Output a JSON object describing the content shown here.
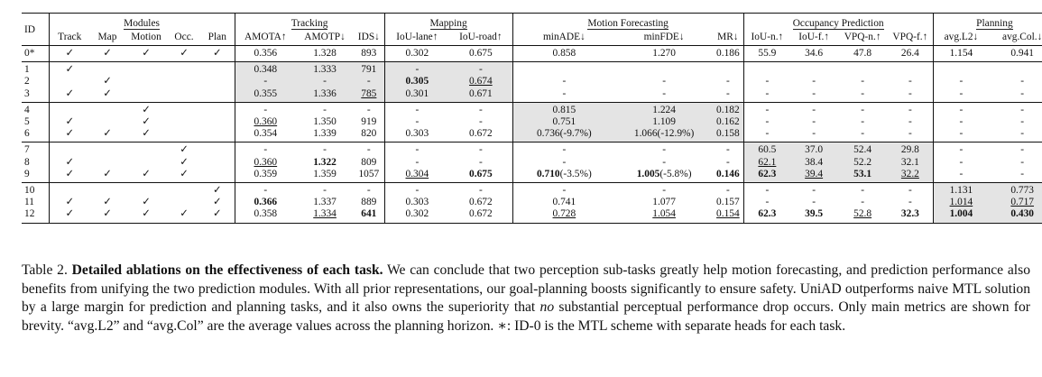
{
  "table": {
    "group_headers": {
      "id": "ID",
      "modules": "Modules",
      "tracking": "Tracking",
      "mapping": "Mapping",
      "motion": "Motion Forecasting",
      "occupancy": "Occupancy Prediction",
      "planning": "Planning"
    },
    "columns": [
      "Track",
      "Map",
      "Motion",
      "Occ.",
      "Plan",
      "AMOTA↑",
      "AMOTP↓",
      "IDS↓",
      "IoU-lane↑",
      "IoU-road↑",
      "minADE↓",
      "minFDE↓",
      "MR↓",
      "IoU-n.↑",
      "IoU-f.↑",
      "VPQ-n.↑",
      "VPQ-f.↑",
      "avg.L2↓",
      "avg.Col.↓"
    ],
    "rows": [
      {
        "id": "0*",
        "cells": [
          "✓",
          "✓",
          "✓",
          "✓",
          "✓",
          "0.356",
          "1.328",
          "893",
          "0.302",
          "0.675",
          "0.858",
          "1.270",
          "0.186",
          "55.9",
          "34.6",
          "47.8",
          "26.4",
          "1.154",
          "0.941"
        ]
      },
      {
        "id": "1",
        "cells": [
          "✓",
          "",
          "",
          "",
          "",
          "0.348",
          "1.333",
          "791",
          "-",
          "-",
          "",
          "",
          "",
          "",
          "",
          "",
          "",
          "",
          ""
        ]
      },
      {
        "id": "2",
        "cells": [
          "",
          "✓",
          "",
          "",
          "",
          "-",
          "-",
          "-",
          "0.305",
          "0.674",
          "-",
          "-",
          "-",
          "-",
          "-",
          "-",
          "-",
          "-",
          "-"
        ]
      },
      {
        "id": "3",
        "cells": [
          "✓",
          "✓",
          "",
          "",
          "",
          "0.355",
          "1.336",
          "785",
          "0.301",
          "0.671",
          "-",
          "-",
          "-",
          "-",
          "-",
          "-",
          "-",
          "-",
          "-"
        ]
      },
      {
        "id": "4",
        "cells": [
          "",
          "",
          "✓",
          "",
          "",
          "-",
          "-",
          "-",
          "-",
          "-",
          "0.815",
          "1.224",
          "0.182",
          "-",
          "-",
          "-",
          "-",
          "-",
          "-"
        ]
      },
      {
        "id": "5",
        "cells": [
          "✓",
          "",
          "✓",
          "",
          "",
          "0.360",
          "1.350",
          "919",
          "-",
          "-",
          "0.751",
          "1.109",
          "0.162",
          "-",
          "-",
          "-",
          "-",
          "-",
          "-"
        ]
      },
      {
        "id": "6",
        "cells": [
          "✓",
          "✓",
          "✓",
          "",
          "",
          "0.354",
          "1.339",
          "820",
          "0.303",
          "0.672",
          "0.736(-9.7%)",
          "1.066(-12.9%)",
          "0.158",
          "-",
          "-",
          "-",
          "-",
          "-",
          "-"
        ]
      },
      {
        "id": "7",
        "cells": [
          "",
          "",
          "",
          "✓",
          "",
          "-",
          "-",
          "-",
          "-",
          "-",
          "-",
          "-",
          "-",
          "60.5",
          "37.0",
          "52.4",
          "29.8",
          "-",
          "-"
        ]
      },
      {
        "id": "8",
        "cells": [
          "✓",
          "",
          "",
          "✓",
          "",
          "0.360",
          "1.322",
          "809",
          "-",
          "-",
          "-",
          "-",
          "-",
          "62.1",
          "38.4",
          "52.2",
          "32.1",
          "-",
          "-"
        ]
      },
      {
        "id": "9",
        "cells": [
          "✓",
          "✓",
          "✓",
          "✓",
          "",
          "0.359",
          "1.359",
          "1057",
          "0.304",
          "0.675",
          "0.710(-3.5%)",
          "1.005(-5.8%)",
          "0.146",
          "62.3",
          "39.4",
          "53.1",
          "32.2",
          "-",
          "-"
        ]
      },
      {
        "id": "10",
        "cells": [
          "",
          "",
          "",
          "",
          "✓",
          "-",
          "-",
          "-",
          "-",
          "-",
          "-",
          "-",
          "-",
          "-",
          "-",
          "-",
          "-",
          "1.131",
          "0.773"
        ]
      },
      {
        "id": "11",
        "cells": [
          "✓",
          "✓",
          "✓",
          "",
          "✓",
          "0.366",
          "1.337",
          "889",
          "0.303",
          "0.672",
          "0.741",
          "1.077",
          "0.157",
          "-",
          "-",
          "-",
          "-",
          "1.014",
          "0.717"
        ]
      },
      {
        "id": "12",
        "cells": [
          "✓",
          "✓",
          "✓",
          "✓",
          "✓",
          "0.358",
          "1.334",
          "641",
          "0.302",
          "0.672",
          "0.728",
          "1.054",
          "0.154",
          "62.3",
          "39.5",
          "52.8",
          "32.3",
          "1.004",
          "0.430"
        ]
      }
    ]
  },
  "caption": {
    "label": "Table 2.",
    "lead": "Detailed ablations on the effectiveness of each task.",
    "body_1": "We can conclude that two perception sub-tasks greatly help motion forecasting, and prediction performance also benefits from unifying the two prediction modules. With all prior representations, our goal-planning boosts significantly to ensure safety. UniAD outperforms naive MTL solution by a large margin for prediction and planning tasks, and it also owns the superiority that",
    "italic_word": "no",
    "body_2": "substantial perceptual performance drop occurs. Only main metrics are shown for brevity. “avg.L2” and “avg.Col” are the average values across the planning horizon. ∗: ID-0 is the MTL scheme with separate heads for each task."
  }
}
